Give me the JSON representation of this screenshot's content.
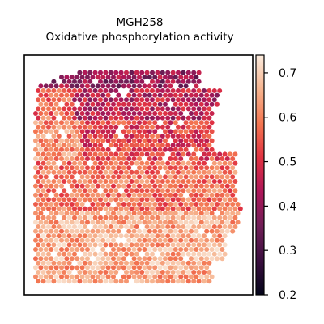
{
  "chart_data": {
    "type": "heatmap",
    "subtype": "spatial-spot-map",
    "title": "MGH258",
    "subtitle": "Oxidative phosphorylation activity",
    "xlabel": "",
    "ylabel": "",
    "axes_ticks_visible": false,
    "grid": false,
    "colormap": "rocket",
    "colorbar": {
      "location": "right",
      "range": [
        0.2,
        0.74
      ],
      "ticks": [
        0.2,
        0.3,
        0.4,
        0.5,
        0.6,
        0.7
      ],
      "tick_labels": [
        "0.2",
        "0.3",
        "0.4",
        "0.5",
        "0.6",
        "0.7"
      ],
      "stops": [
        "#03051a",
        "#3b0f3f",
        "#701f57",
        "#ad1759",
        "#e13342",
        "#f37651",
        "#f6b48f",
        "#faebdd"
      ]
    },
    "value_pattern": {
      "description_of_regions": [
        {
          "region": "top band",
          "typical_value": 0.42
        },
        {
          "region": "upper middle",
          "typical_value": 0.5
        },
        {
          "region": "middle",
          "typical_value": 0.58
        },
        {
          "region": "bottom",
          "typical_value": 0.66
        }
      ]
    }
  },
  "text": {
    "title": "MGH258",
    "subtitle": "Oxidative phosphorylation activity"
  }
}
